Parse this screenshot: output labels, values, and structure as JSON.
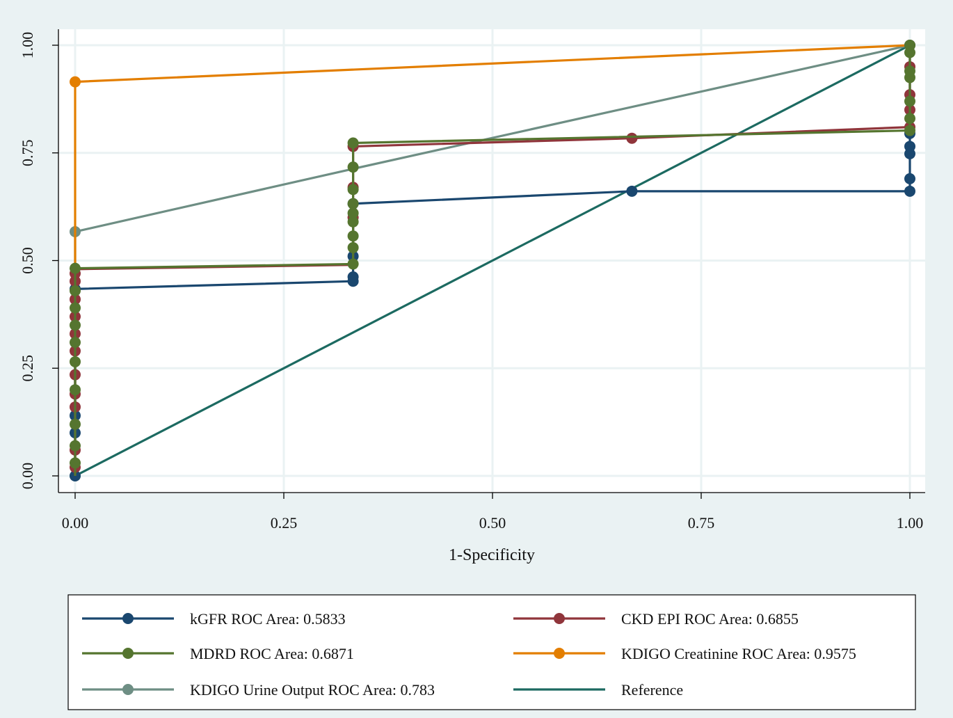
{
  "chart_data": {
    "type": "line",
    "title": "",
    "xlabel": "1-Specificity",
    "ylabel": "",
    "xlim": [
      0,
      1
    ],
    "ylim": [
      0,
      1
    ],
    "x_ticks": [
      "0.00",
      "0.25",
      "0.50",
      "0.75",
      "1.00"
    ],
    "y_ticks": [
      "0.00",
      "0.25",
      "0.50",
      "0.75",
      "1.00"
    ],
    "grid": true,
    "legend_position": "bottom",
    "series": [
      {
        "name": "kGFR ROC Area: 0.5833",
        "color": "#1a476f",
        "line": [
          [
            0,
            0
          ],
          [
            0,
            0.434
          ],
          [
            0.333,
            0.452
          ],
          [
            0.333,
            0.632
          ],
          [
            0.667,
            0.661
          ],
          [
            1,
            0.661
          ],
          [
            1,
            1
          ]
        ],
        "points": [
          [
            0,
            0
          ],
          [
            0,
            0.1
          ],
          [
            0,
            0.14
          ],
          [
            0,
            0.434
          ],
          [
            0.333,
            0.452
          ],
          [
            0.333,
            0.462
          ],
          [
            0.333,
            0.51
          ],
          [
            0.333,
            0.632
          ],
          [
            0.667,
            0.661
          ],
          [
            1,
            0.661
          ],
          [
            1,
            0.69
          ],
          [
            1,
            0.748
          ],
          [
            1,
            0.765
          ],
          [
            1,
            0.795
          ],
          [
            1,
            1
          ]
        ]
      },
      {
        "name": "CKD EPI ROC Area: 0.6855",
        "color": "#90353b",
        "line": [
          [
            0,
            0
          ],
          [
            0,
            0.48
          ],
          [
            0.333,
            0.49
          ],
          [
            0.333,
            0.765
          ],
          [
            0.667,
            0.784
          ],
          [
            1,
            0.81
          ],
          [
            1,
            1
          ]
        ],
        "points": [
          [
            0,
            0.02
          ],
          [
            0,
            0.06
          ],
          [
            0,
            0.16
          ],
          [
            0,
            0.19
          ],
          [
            0,
            0.235
          ],
          [
            0,
            0.29
          ],
          [
            0,
            0.33
          ],
          [
            0,
            0.37
          ],
          [
            0,
            0.41
          ],
          [
            0,
            0.452
          ],
          [
            0,
            0.47
          ],
          [
            0.333,
            0.6
          ],
          [
            0.333,
            0.67
          ],
          [
            0.333,
            0.765
          ],
          [
            0.667,
            0.784
          ],
          [
            1,
            0.81
          ],
          [
            1,
            0.85
          ],
          [
            1,
            0.885
          ],
          [
            1,
            0.95
          ]
        ]
      },
      {
        "name": "MDRD ROC Area: 0.6871",
        "color": "#55752f",
        "line": [
          [
            0,
            0
          ],
          [
            0,
            0.482
          ],
          [
            0.333,
            0.492
          ],
          [
            0.333,
            0.773
          ],
          [
            1,
            0.802
          ],
          [
            1,
            1
          ]
        ],
        "points": [
          [
            0,
            0.03
          ],
          [
            0,
            0.07
          ],
          [
            0,
            0.12
          ],
          [
            0,
            0.2
          ],
          [
            0,
            0.265
          ],
          [
            0,
            0.31
          ],
          [
            0,
            0.35
          ],
          [
            0,
            0.39
          ],
          [
            0,
            0.43
          ],
          [
            0,
            0.482
          ],
          [
            0.333,
            0.492
          ],
          [
            0.333,
            0.53
          ],
          [
            0.333,
            0.557
          ],
          [
            0.333,
            0.59
          ],
          [
            0.333,
            0.61
          ],
          [
            0.333,
            0.632
          ],
          [
            0.333,
            0.665
          ],
          [
            0.333,
            0.717
          ],
          [
            0.333,
            0.773
          ],
          [
            1,
            0.802
          ],
          [
            1,
            0.83
          ],
          [
            1,
            0.87
          ],
          [
            1,
            0.925
          ],
          [
            1,
            0.94
          ],
          [
            1,
            0.983
          ],
          [
            1,
            1
          ]
        ]
      },
      {
        "name": "KDIGO Creatinine ROC Area: 0.9575",
        "color": "#e37e00",
        "line": [
          [
            0,
            0
          ],
          [
            0,
            0.915
          ],
          [
            1,
            1
          ]
        ],
        "points": [
          [
            0,
            0.915
          ],
          [
            1,
            1
          ]
        ]
      },
      {
        "name": "KDIGO Urine Output ROC Area: 0.783",
        "color": "#6e8e84",
        "line": [
          [
            0,
            0
          ],
          [
            0,
            0.567
          ],
          [
            0.333,
            0.713
          ],
          [
            1,
            1
          ]
        ],
        "points": [
          [
            0,
            0
          ],
          [
            0,
            0.567
          ],
          [
            1,
            1
          ]
        ]
      },
      {
        "name": "Reference",
        "color": "#1c6a61",
        "line": [
          [
            0,
            0
          ],
          [
            1,
            1
          ]
        ],
        "points": []
      }
    ]
  }
}
